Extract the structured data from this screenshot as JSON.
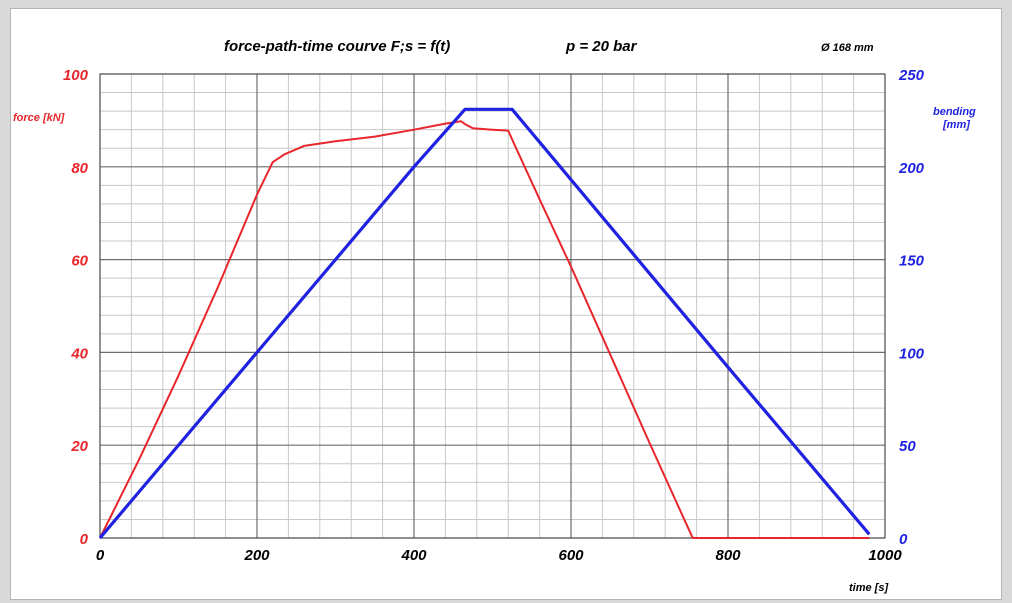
{
  "colors": {
    "force": "#e8262b",
    "bending": "#1f22e0",
    "grid_major": "#6e6e6e",
    "grid_minor": "#c8c8c8"
  },
  "chart_data": {
    "type": "line",
    "title": "force-path-time  courve    F;s = f(t)",
    "subtitle": "p = 20 bar",
    "note": "Ø 168 mm",
    "xlabel": "time [s]",
    "ylabel_left": "force [kN]",
    "ylabel_right_line1": "bending",
    "ylabel_right_line2": "[mm]",
    "xlim": [
      0,
      1000
    ],
    "ylim_left": [
      0,
      100
    ],
    "ylim_right": [
      0,
      250
    ],
    "x_ticks": [
      "0",
      "200",
      "400",
      "600",
      "800",
      "1000"
    ],
    "y_left_ticks": [
      "0",
      "20",
      "40",
      "60",
      "80",
      "100"
    ],
    "y_right_ticks": [
      "0",
      "50",
      "100",
      "150",
      "200",
      "250"
    ],
    "grid": true,
    "series": [
      {
        "name": "force",
        "axis": "left",
        "x": [
          0,
          50,
          100,
          150,
          200,
          220,
          235,
          260,
          300,
          350,
          400,
          440,
          460,
          465,
          475,
          500,
          520,
          530,
          560,
          600,
          650,
          700,
          755,
          800,
          900,
          980
        ],
        "y": [
          0,
          17,
          35,
          54,
          74,
          81,
          82.7,
          84.5,
          85.5,
          86.5,
          88,
          89.3,
          89.8,
          89.2,
          88.3,
          88,
          87.8,
          84,
          73,
          58.5,
          39.5,
          20.5,
          0,
          0,
          0,
          0
        ]
      },
      {
        "name": "bending",
        "axis": "right",
        "x": [
          0,
          200,
          400,
          465,
          525,
          800,
          980
        ],
        "y": [
          0,
          100,
          200,
          231,
          231,
          92,
          2
        ]
      }
    ]
  }
}
